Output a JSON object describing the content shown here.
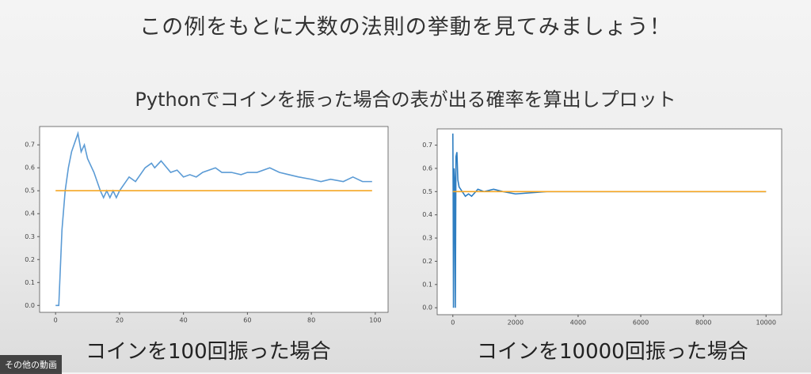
{
  "title": "この例をもとに大数の法則の挙動を見てみましょう！",
  "subtitle": "Pythonでコインを振った場合の表が出る確率を算出しプロット",
  "overlay_label": "その他の動画",
  "chart_data": [
    {
      "type": "line",
      "caption": "コインを100回振った場合",
      "xlim": [
        -5,
        104
      ],
      "xticks": [
        0,
        20,
        40,
        60,
        80,
        100
      ],
      "ylim": [
        -0.03,
        0.78
      ],
      "yticks": [
        {
          "value": 0,
          "label": "0.0"
        },
        0.1,
        0.2,
        0.3,
        0.4,
        0.5,
        0.6,
        0.7
      ],
      "series": [
        {
          "color": "#5b9bd5",
          "x": [
            0,
            1,
            2,
            3,
            4,
            5,
            6,
            7,
            8,
            9,
            10,
            12,
            14,
            15,
            16,
            17,
            18,
            19,
            20,
            23,
            25,
            28,
            30,
            31,
            33,
            36,
            38,
            40,
            42,
            44,
            46,
            50,
            52,
            55,
            58,
            60,
            63,
            67,
            70,
            73,
            76,
            80,
            83,
            86,
            90,
            93,
            96,
            99
          ],
          "values": [
            0,
            0,
            0.33,
            0.5,
            0.6,
            0.67,
            0.71,
            0.75,
            0.67,
            0.7,
            0.64,
            0.58,
            0.5,
            0.47,
            0.5,
            0.47,
            0.5,
            0.47,
            0.5,
            0.56,
            0.54,
            0.6,
            0.62,
            0.6,
            0.63,
            0.58,
            0.59,
            0.56,
            0.57,
            0.56,
            0.58,
            0.6,
            0.58,
            0.58,
            0.57,
            0.58,
            0.58,
            0.6,
            0.58,
            0.57,
            0.56,
            0.55,
            0.54,
            0.55,
            0.54,
            0.56,
            0.54,
            0.54
          ]
        },
        {
          "color": "#f5a623",
          "x": [
            0,
            99
          ],
          "values": [
            0.5,
            0.5
          ]
        }
      ]
    },
    {
      "type": "line",
      "caption": "コインを10000回振った場合",
      "xlim": [
        -500,
        10500
      ],
      "xticks": [
        0,
        2000,
        4000,
        6000,
        8000,
        10000
      ],
      "ylim": [
        -0.03,
        0.77
      ],
      "yticks": [
        {
          "value": 0,
          "label": "0.0"
        },
        0.1,
        0.2,
        0.3,
        0.4,
        0.5,
        0.6,
        0.7
      ],
      "series": [
        {
          "color": "#2f7ec1",
          "x": [
            0,
            10,
            20,
            40,
            60,
            80,
            100,
            130,
            160,
            200,
            300,
            400,
            500,
            600,
            800,
            1000,
            1300,
            1600,
            2000,
            3000,
            4000,
            5000,
            6000,
            7000,
            8000,
            9000,
            10000
          ],
          "values": [
            0.75,
            0.5,
            0,
            0.6,
            0.55,
            0,
            0.65,
            0.67,
            0.55,
            0.52,
            0.5,
            0.48,
            0.49,
            0.48,
            0.51,
            0.5,
            0.51,
            0.5,
            0.49,
            0.5,
            0.5,
            0.5,
            0.5,
            0.5,
            0.5,
            0.5,
            0.5
          ]
        },
        {
          "color": "#f5a623",
          "x": [
            0,
            10000
          ],
          "values": [
            0.5,
            0.5
          ]
        }
      ]
    }
  ]
}
